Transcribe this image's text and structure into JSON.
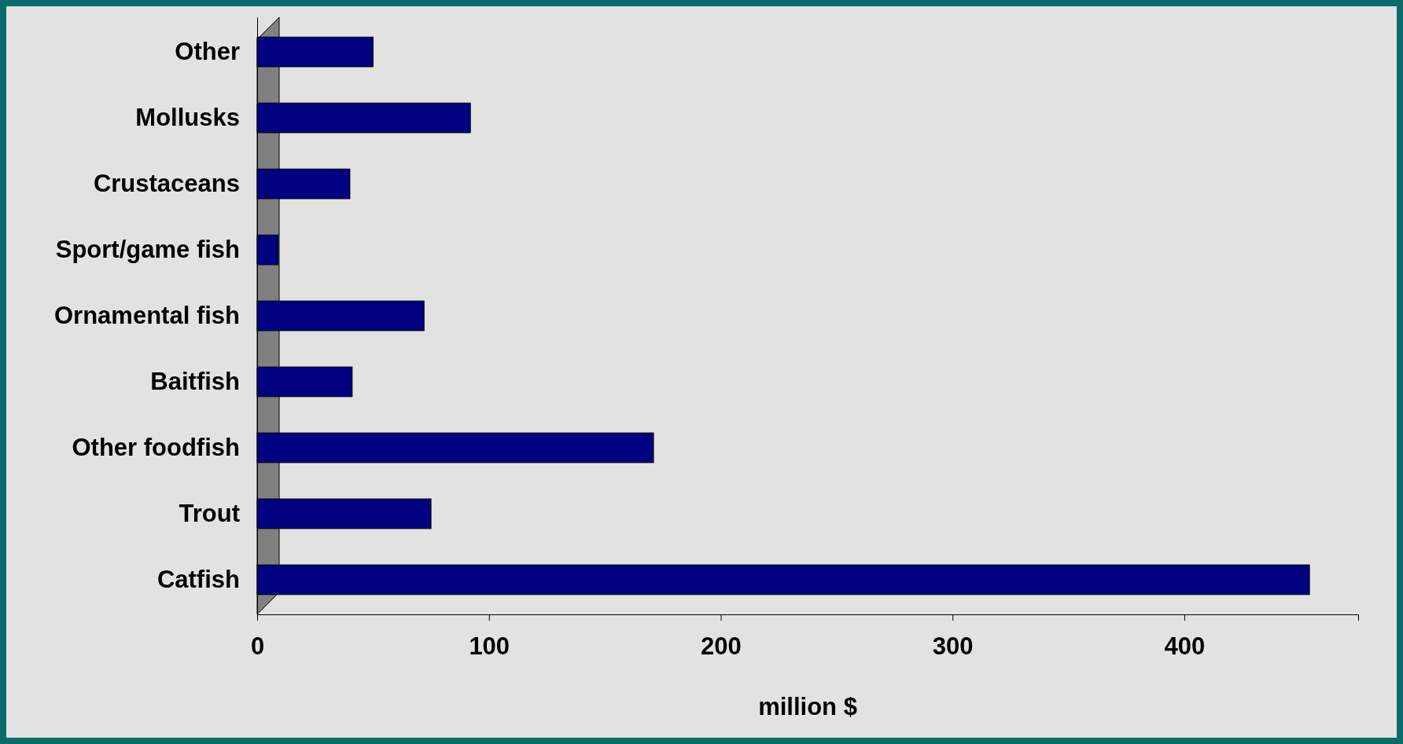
{
  "chart_data": {
    "type": "bar",
    "orientation": "horizontal",
    "xlabel": "million $",
    "categories": [
      "Other",
      "Mollusks",
      "Crustaceans",
      "Sport/game fish",
      "Ornamental fish",
      "Baitfish",
      "Other foodfish",
      "Trout",
      "Catfish"
    ],
    "values": [
      50,
      92,
      40,
      9,
      72,
      41,
      171,
      75,
      454
    ],
    "color": "#000080",
    "xlim": [
      0,
      475
    ],
    "xticks": [
      0,
      100,
      200,
      300,
      400
    ],
    "grid": false
  }
}
